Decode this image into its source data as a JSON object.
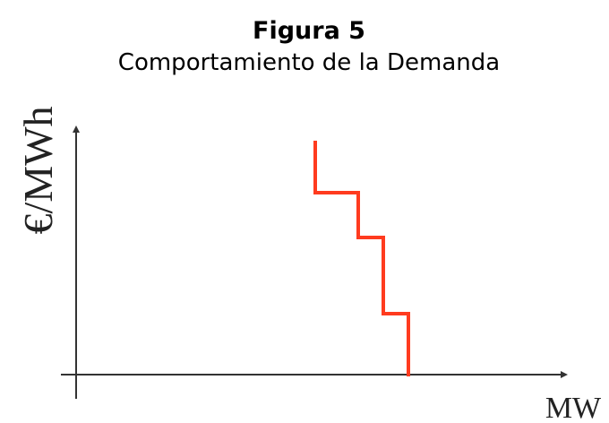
{
  "header": {
    "title": "Figura 5",
    "subtitle": "Comportamiento de la Demanda"
  },
  "axes": {
    "y_label": "€/MWh",
    "x_label": "MW"
  }
}
